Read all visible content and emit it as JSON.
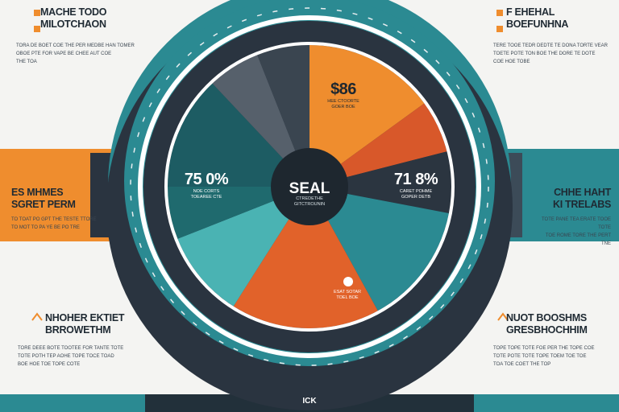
{
  "colors": {
    "teal": "#2b8a92",
    "orange": "#ef8d2e",
    "dark": "#2a3440",
    "accent_dark": "#1e272f"
  },
  "corners": {
    "top_left": {
      "title_1": "MACHE TODO",
      "title_2": "MILOTCHAON",
      "body": "TORA DE BOET COE THE PER MEDBE HAN TOMER\nOBOE PTE FOR VAPE BE CHEE AUT COE\nTHE TOA"
    },
    "top_right": {
      "title_1": "F EHEHAL",
      "title_2": "BOEFUNHNA",
      "body": "TERE TOOE TEDR DEDTE TE DONA TORTE VEAR\nTOETE POTE TON BOE THE DORE TE DOTE\nCOE HOE TOBE"
    },
    "mid_left": {
      "title_1": "ES MHMES",
      "title_2": "SGRET PERM",
      "body": "TO TOAT PO GPT THE TESTE TTORE\nTO MOT TO PA YE BE PO TRE"
    },
    "mid_right": {
      "title_1": "CHHE HAHT",
      "title_2": "KI TRELABS",
      "body": "TOTE PANE TEA ERATE TOOE TOTE\nTOE ROME TORE THE PERT TNE"
    },
    "bottom_left": {
      "title_1": "NHOHER EKTIET",
      "title_2": "BRROWETHM",
      "body": "TORE DEEE BOTE TOOTEE FOR TANTE TOTE\nTOTE POTH TEP AOHE TOPE TOCE TOAD\nBOE HOE TOE TOPE COTE"
    },
    "bottom_right": {
      "title_1": "NUOT BOOSHMS",
      "title_2": "GRESBHOCHHIM",
      "body": "TOPE TOPE TOTE FOE PER THE TOPE COE\nTOTE POTE TOTE TOPE TOEM TOE TOE\nTOA TOE COET THE TOP"
    }
  },
  "center": {
    "title": "SEAL",
    "subtitle": "CTREDETHE\nGITCTROUNIN"
  },
  "footer_label": "ICK",
  "chart_data": {
    "type": "pie",
    "title": "SEAL",
    "slices": [
      {
        "value": 15,
        "color": "#ef8d2e"
      },
      {
        "value": 6,
        "color": "#d8582a"
      },
      {
        "value": 7,
        "color": "#2b3540"
      },
      {
        "value": 14,
        "color": "#2b8a92"
      },
      {
        "value": 17,
        "color": "#e1622a"
      },
      {
        "value": 10,
        "color": "#4ab3b3"
      },
      {
        "value": 6,
        "color": "#1f6a6e"
      },
      {
        "value": 13,
        "color": "#1d5c63"
      },
      {
        "value": 6,
        "color": "#56606b"
      },
      {
        "value": 6,
        "color": "#3a4550"
      }
    ],
    "data_labels": [
      {
        "value": "$86",
        "caption": "HEE CTOORTE\nGOER BOE"
      },
      {
        "value": "71 8%",
        "caption": "CARET POHME\nGOPER DETB"
      },
      {
        "value": "75 0%",
        "caption": "NOE CORTS\nTOEAREE CTE"
      },
      {
        "value": "",
        "caption": "ESAT SOTAR\nTOEL BOE"
      }
    ]
  }
}
